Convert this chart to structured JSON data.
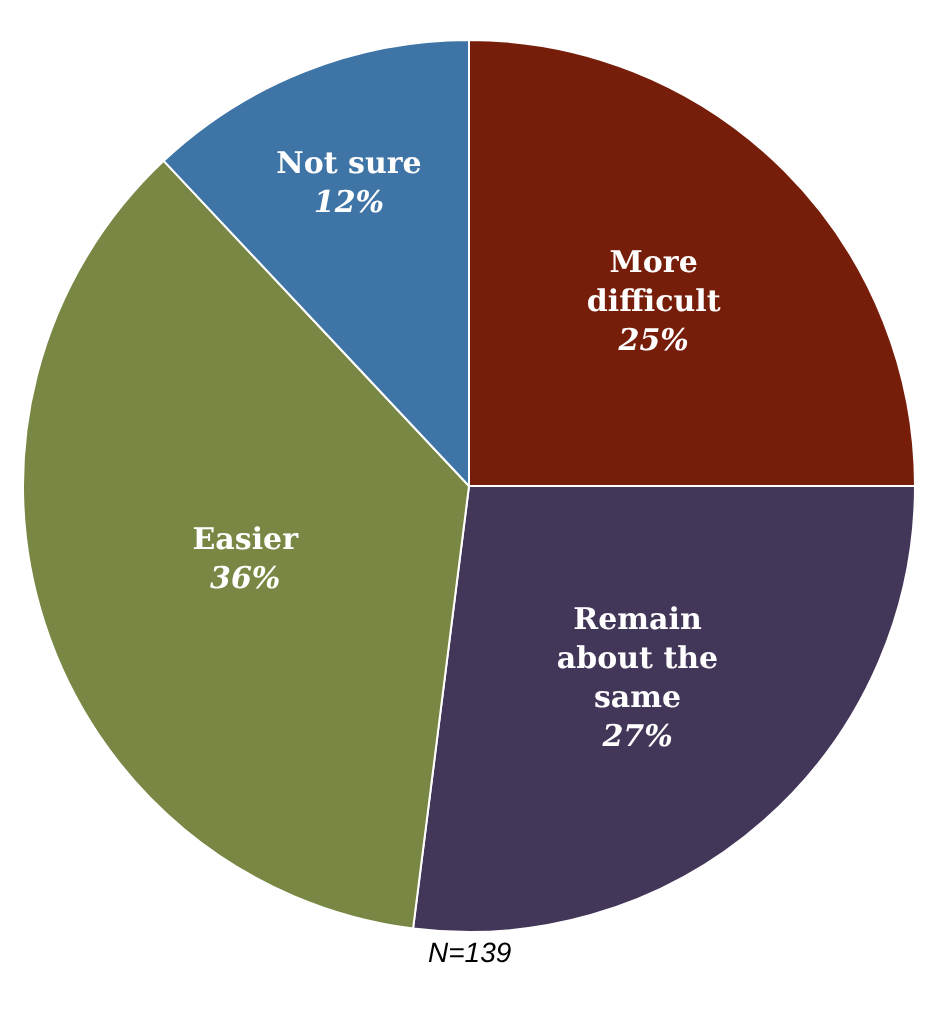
{
  "chart_data": {
    "type": "pie",
    "categories": [
      "More\ndifficult",
      "Remain\nabout the\nsame",
      "Easier",
      "Not sure"
    ],
    "values": [
      25,
      27,
      36,
      12
    ],
    "value_labels": [
      "25%",
      "27%",
      "36%",
      "12%"
    ],
    "colors": [
      "#771e0a",
      "#433759",
      "#788743",
      "#3f74a6"
    ],
    "legend": false,
    "annotations": [
      "N=139"
    ]
  }
}
